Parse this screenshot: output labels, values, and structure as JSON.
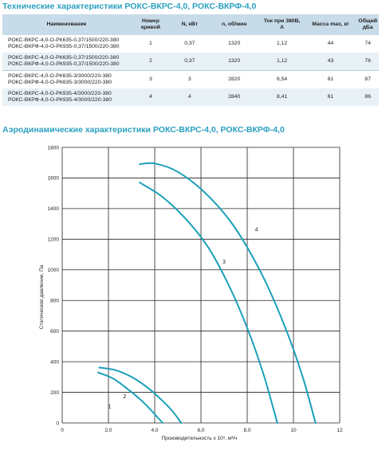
{
  "titles": {
    "specs": "Технические характеристики РОКС-ВКРС-4,0, РОКС-ВКРФ-4,0",
    "aero": "Аэродинамические характеристики РОКС-ВКРС-4,0, РОКС-ВКРФ-4,0"
  },
  "table": {
    "headers": [
      "Наименование",
      "Номер кривой",
      "N, кВт",
      "n, об/мин",
      "Ток при 380В, А",
      "Масса max, кг",
      "Общий дБа"
    ],
    "rows": [
      {
        "names": [
          "РОКС-ВКРС-4,0-О-РК635-0,37/1500/220-380",
          "РОКС-ВКРФ-4,0-О-РК935-0,37/1500/220-380"
        ],
        "curve": "1",
        "power": "0,37",
        "rpm": "1320",
        "current": "1,12",
        "mass": "44",
        "noise": "74"
      },
      {
        "names": [
          "РОКС-ВКРС-4,0-О-РК635-0,37/1500/220-380",
          "РОКС-ВКРФ-4,0-О-РК935-0,37/1500/220-380"
        ],
        "curve": "2",
        "power": "0,37",
        "rpm": "1320",
        "current": "1,12",
        "mass": "43",
        "noise": "76"
      },
      {
        "names": [
          "РОКС-ВКРС-4,0-О-РК635-3/3000/220-380",
          "РОКС-ВКРФ-4,0-О-РК635-3/3000/220-380"
        ],
        "curve": "3",
        "power": "3",
        "rpm": "2820",
        "current": "6,54",
        "mass": "61",
        "noise": "87"
      },
      {
        "names": [
          "РОКС-ВКРС-4,0-О-РК935-4/3000/220-380",
          "РОКС-ВКРФ-4,0-О-РК935-4/3000/220-380"
        ],
        "curve": "4",
        "power": "4",
        "rpm": "2840",
        "current": "8,41",
        "mass": "61",
        "noise": "86"
      }
    ]
  },
  "chart_data": {
    "type": "line",
    "xlabel": "Производительность x 10³, м³/ч",
    "ylabel": "Статическое давление, Па",
    "xlim": [
      0,
      12
    ],
    "ylim": [
      0,
      1800
    ],
    "xticks": [
      "0",
      "2,0",
      "4,0",
      "6,0",
      "8,0",
      "10",
      "12"
    ],
    "yticks": [
      "0",
      "200",
      "400",
      "600",
      "800",
      "1000",
      "1200",
      "1400",
      "1600",
      "1800"
    ],
    "grid": true,
    "line_color": "#1aa0b8",
    "series": [
      {
        "name": "1",
        "label_at": [
          2.05,
          95
        ],
        "x": [
          1.55,
          2.2,
          2.8,
          3.4,
          3.8,
          4.1,
          4.35
        ],
        "y": [
          330,
          290,
          225,
          150,
          90,
          40,
          0
        ]
      },
      {
        "name": "2",
        "label_at": [
          2.7,
          160
        ],
        "x": [
          1.6,
          2.3,
          3.0,
          3.7,
          4.3,
          4.75,
          5.15
        ],
        "y": [
          362,
          345,
          300,
          230,
          150,
          80,
          0
        ]
      },
      {
        "name": "3",
        "label_at": [
          7.0,
          1040
        ],
        "x": [
          3.35,
          4.3,
          5.3,
          6.3,
          7.2,
          8.0,
          8.7,
          9.3
        ],
        "y": [
          1570,
          1480,
          1340,
          1150,
          900,
          620,
          320,
          0
        ]
      },
      {
        "name": "4",
        "label_at": [
          8.4,
          1250
        ],
        "x": [
          3.35,
          4.0,
          5.0,
          6.2,
          7.4,
          8.6,
          9.6,
          10.4,
          10.95
        ],
        "y": [
          1690,
          1695,
          1640,
          1500,
          1290,
          980,
          640,
          300,
          0
        ]
      }
    ]
  }
}
